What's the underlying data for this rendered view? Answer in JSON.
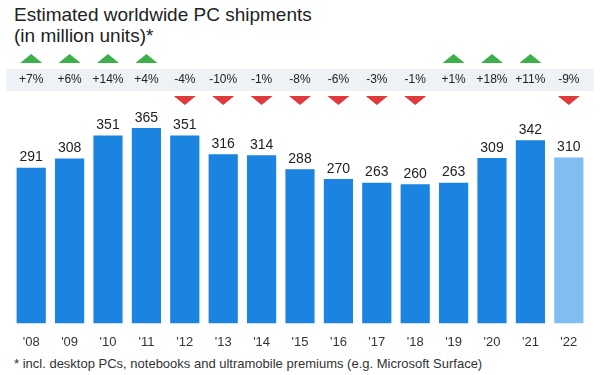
{
  "chart_data": {
    "type": "bar",
    "title": "Estimated worldwide PC shipments",
    "subtitle": "(in million units)*",
    "footnote": "* incl. desktop PCs, notebooks and ultramobile premiums (e.g. Microsoft Surface)",
    "categories": [
      "'08",
      "'09",
      "'10",
      "'11",
      "'12",
      "'13",
      "'14",
      "'15",
      "'16",
      "'17",
      "'18",
      "'19",
      "'20",
      "'21",
      "'22"
    ],
    "values": [
      291,
      308,
      351,
      365,
      351,
      316,
      314,
      288,
      270,
      263,
      260,
      263,
      309,
      342,
      310
    ],
    "changes": [
      7,
      6,
      14,
      4,
      -4,
      -10,
      -1,
      -8,
      -6,
      -3,
      -1,
      1,
      18,
      11,
      -9
    ],
    "change_labels": [
      "+7%",
      "+6%",
      "+14%",
      "+4%",
      "-4%",
      "-10%",
      "-1%",
      "-8%",
      "-6%",
      "-3%",
      "-1%",
      "+1%",
      "+18%",
      "+11%",
      "-9%"
    ],
    "colors": [
      "#1a84e0",
      "#1a84e0",
      "#1a84e0",
      "#1a84e0",
      "#1a84e0",
      "#1a84e0",
      "#1a84e0",
      "#1a84e0",
      "#1a84e0",
      "#1a84e0",
      "#1a84e0",
      "#1a84e0",
      "#1a84e0",
      "#1a84e0",
      "#7fbdf2"
    ],
    "ylim": [
      0,
      380
    ],
    "grid": false,
    "data_labels": true,
    "tick_labels": "x"
  }
}
